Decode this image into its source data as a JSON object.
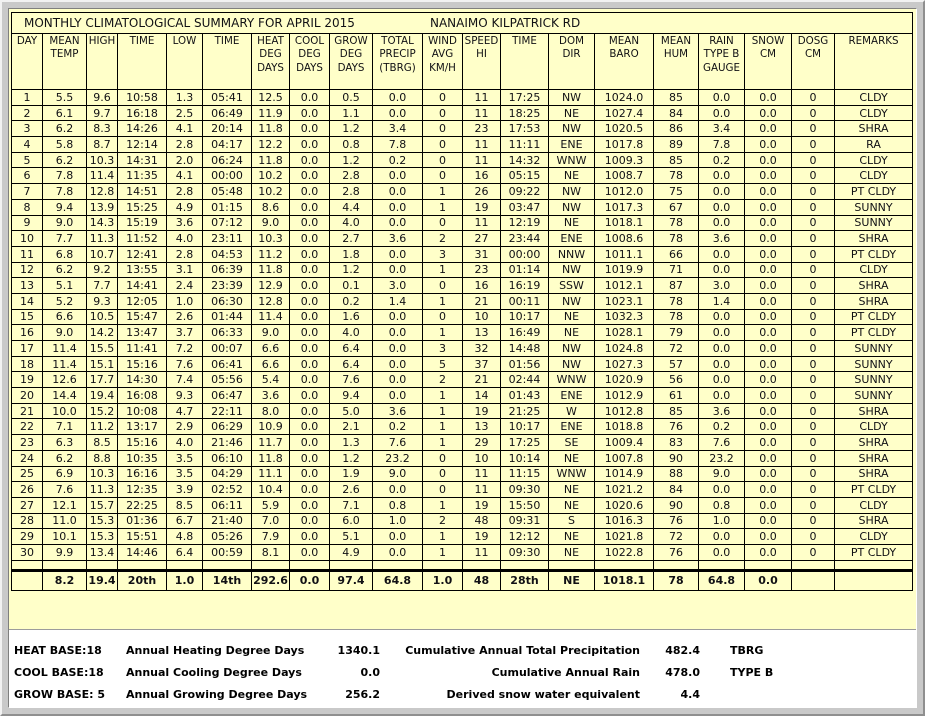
{
  "window": {
    "title": "MONTHLY CLIMATOLOGICAL SUMMARY FOR APRIL 2015",
    "station": "NANAIMO KILPATRICK RD"
  },
  "colors": {
    "panel_bg": "#FFFFC9",
    "footer_bg": "#FFFFFF",
    "grid": "#000000",
    "frame": "#C9C9C9"
  },
  "table": {
    "columns": [
      "DAY",
      "MEAN\nTEMP",
      "HIGH",
      "TIME",
      "LOW",
      "TIME",
      "HEAT\nDEG\nDAYS",
      "COOL\nDEG\nDAYS",
      "GROW\nDEG\nDAYS",
      "TOTAL\nPRECIP\n(TBRG)",
      "WIND\nAVG\nKM/H",
      "SPEED\nHI",
      "TIME",
      "DOM\nDIR",
      "MEAN\nBARO",
      "MEAN\nHUM",
      "RAIN\nTYPE B\nGAUGE",
      "SNOW\nCM",
      "DOSG\nCM",
      "REMARKS"
    ],
    "rows": [
      [
        "1",
        "5.5",
        "9.6",
        "10:58",
        "1.3",
        "05:41",
        "12.5",
        "0.0",
        "0.5",
        "0.0",
        "0",
        "11",
        "17:25",
        "NW",
        "1024.0",
        "85",
        "0.0",
        "0.0",
        "0",
        "CLDY"
      ],
      [
        "2",
        "6.1",
        "9.7",
        "16:18",
        "2.5",
        "06:49",
        "11.9",
        "0.0",
        "1.1",
        "0.0",
        "0",
        "11",
        "18:25",
        "NE",
        "1027.4",
        "84",
        "0.0",
        "0.0",
        "0",
        "CLDY"
      ],
      [
        "3",
        "6.2",
        "8.3",
        "14:26",
        "4.1",
        "20:14",
        "11.8",
        "0.0",
        "1.2",
        "3.4",
        "0",
        "23",
        "17:53",
        "NW",
        "1020.5",
        "86",
        "3.4",
        "0.0",
        "0",
        "SHRA"
      ],
      [
        "4",
        "5.8",
        "8.7",
        "12:14",
        "2.8",
        "04:17",
        "12.2",
        "0.0",
        "0.8",
        "7.8",
        "0",
        "11",
        "11:11",
        "ENE",
        "1017.8",
        "89",
        "7.8",
        "0.0",
        "0",
        "RA"
      ],
      [
        "5",
        "6.2",
        "10.3",
        "14:31",
        "2.0",
        "06:24",
        "11.8",
        "0.0",
        "1.2",
        "0.2",
        "0",
        "11",
        "14:32",
        "WNW",
        "1009.3",
        "85",
        "0.2",
        "0.0",
        "0",
        "CLDY"
      ],
      [
        "6",
        "7.8",
        "11.4",
        "11:35",
        "4.1",
        "00:00",
        "10.2",
        "0.0",
        "2.8",
        "0.0",
        "0",
        "16",
        "05:15",
        "NE",
        "1008.7",
        "78",
        "0.0",
        "0.0",
        "0",
        "CLDY"
      ],
      [
        "7",
        "7.8",
        "12.8",
        "14:51",
        "2.8",
        "05:48",
        "10.2",
        "0.0",
        "2.8",
        "0.0",
        "1",
        "26",
        "09:22",
        "NW",
        "1012.0",
        "75",
        "0.0",
        "0.0",
        "0",
        "PT CLDY"
      ],
      [
        "8",
        "9.4",
        "13.9",
        "15:25",
        "4.9",
        "01:15",
        "8.6",
        "0.0",
        "4.4",
        "0.0",
        "1",
        "19",
        "03:47",
        "NW",
        "1017.3",
        "67",
        "0.0",
        "0.0",
        "0",
        "SUNNY"
      ],
      [
        "9",
        "9.0",
        "14.3",
        "15:19",
        "3.6",
        "07:12",
        "9.0",
        "0.0",
        "4.0",
        "0.0",
        "0",
        "11",
        "12:19",
        "NE",
        "1018.1",
        "78",
        "0.0",
        "0.0",
        "0",
        "SUNNY"
      ],
      [
        "10",
        "7.7",
        "11.3",
        "11:52",
        "4.0",
        "23:11",
        "10.3",
        "0.0",
        "2.7",
        "3.6",
        "2",
        "27",
        "23:44",
        "ENE",
        "1008.6",
        "78",
        "3.6",
        "0.0",
        "0",
        "SHRA"
      ],
      [
        "11",
        "6.8",
        "10.7",
        "12:41",
        "2.8",
        "04:53",
        "11.2",
        "0.0",
        "1.8",
        "0.0",
        "3",
        "31",
        "00:00",
        "NNW",
        "1011.1",
        "66",
        "0.0",
        "0.0",
        "0",
        "PT CLDY"
      ],
      [
        "12",
        "6.2",
        "9.2",
        "13:55",
        "3.1",
        "06:39",
        "11.8",
        "0.0",
        "1.2",
        "0.0",
        "1",
        "23",
        "01:14",
        "NW",
        "1019.9",
        "71",
        "0.0",
        "0.0",
        "0",
        "CLDY"
      ],
      [
        "13",
        "5.1",
        "7.7",
        "14:41",
        "2.4",
        "23:39",
        "12.9",
        "0.0",
        "0.1",
        "3.0",
        "0",
        "16",
        "16:19",
        "SSW",
        "1012.1",
        "87",
        "3.0",
        "0.0",
        "0",
        "SHRA"
      ],
      [
        "14",
        "5.2",
        "9.3",
        "12:05",
        "1.0",
        "06:30",
        "12.8",
        "0.0",
        "0.2",
        "1.4",
        "1",
        "21",
        "00:11",
        "NW",
        "1023.1",
        "78",
        "1.4",
        "0.0",
        "0",
        "SHRA"
      ],
      [
        "15",
        "6.6",
        "10.5",
        "15:47",
        "2.6",
        "01:44",
        "11.4",
        "0.0",
        "1.6",
        "0.0",
        "0",
        "10",
        "10:17",
        "NE",
        "1032.3",
        "78",
        "0.0",
        "0.0",
        "0",
        "PT CLDY"
      ],
      [
        "16",
        "9.0",
        "14.2",
        "13:47",
        "3.7",
        "06:33",
        "9.0",
        "0.0",
        "4.0",
        "0.0",
        "1",
        "13",
        "16:49",
        "NE",
        "1028.1",
        "79",
        "0.0",
        "0.0",
        "0",
        "PT CLDY"
      ],
      [
        "17",
        "11.4",
        "15.5",
        "11:41",
        "7.2",
        "00:07",
        "6.6",
        "0.0",
        "6.4",
        "0.0",
        "3",
        "32",
        "14:48",
        "NW",
        "1024.8",
        "72",
        "0.0",
        "0.0",
        "0",
        "SUNNY"
      ],
      [
        "18",
        "11.4",
        "15.1",
        "15:16",
        "7.6",
        "06:41",
        "6.6",
        "0.0",
        "6.4",
        "0.0",
        "5",
        "37",
        "01:56",
        "NW",
        "1027.3",
        "57",
        "0.0",
        "0.0",
        "0",
        "SUNNY"
      ],
      [
        "19",
        "12.6",
        "17.7",
        "14:30",
        "7.4",
        "05:56",
        "5.4",
        "0.0",
        "7.6",
        "0.0",
        "2",
        "21",
        "02:44",
        "WNW",
        "1020.9",
        "56",
        "0.0",
        "0.0",
        "0",
        "SUNNY"
      ],
      [
        "20",
        "14.4",
        "19.4",
        "16:08",
        "9.3",
        "06:47",
        "3.6",
        "0.0",
        "9.4",
        "0.0",
        "1",
        "14",
        "01:43",
        "ENE",
        "1012.9",
        "61",
        "0.0",
        "0.0",
        "0",
        "SUNNY"
      ],
      [
        "21",
        "10.0",
        "15.2",
        "10:08",
        "4.7",
        "22:11",
        "8.0",
        "0.0",
        "5.0",
        "3.6",
        "1",
        "19",
        "21:25",
        "W",
        "1012.8",
        "85",
        "3.6",
        "0.0",
        "0",
        "SHRA"
      ],
      [
        "22",
        "7.1",
        "11.2",
        "13:17",
        "2.9",
        "06:29",
        "10.9",
        "0.0",
        "2.1",
        "0.2",
        "1",
        "13",
        "10:17",
        "ENE",
        "1018.8",
        "76",
        "0.2",
        "0.0",
        "0",
        "CLDY"
      ],
      [
        "23",
        "6.3",
        "8.5",
        "15:16",
        "4.0",
        "21:46",
        "11.7",
        "0.0",
        "1.3",
        "7.6",
        "1",
        "29",
        "17:25",
        "SE",
        "1009.4",
        "83",
        "7.6",
        "0.0",
        "0",
        "SHRA"
      ],
      [
        "24",
        "6.2",
        "8.8",
        "10:35",
        "3.5",
        "06:10",
        "11.8",
        "0.0",
        "1.2",
        "23.2",
        "0",
        "10",
        "10:14",
        "NE",
        "1007.8",
        "90",
        "23.2",
        "0.0",
        "0",
        "SHRA"
      ],
      [
        "25",
        "6.9",
        "10.3",
        "16:16",
        "3.5",
        "04:29",
        "11.1",
        "0.0",
        "1.9",
        "9.0",
        "0",
        "11",
        "11:15",
        "WNW",
        "1014.9",
        "88",
        "9.0",
        "0.0",
        "0",
        "SHRA"
      ],
      [
        "26",
        "7.6",
        "11.3",
        "12:35",
        "3.9",
        "02:52",
        "10.4",
        "0.0",
        "2.6",
        "0.0",
        "0",
        "11",
        "09:30",
        "NE",
        "1021.2",
        "84",
        "0.0",
        "0.0",
        "0",
        "PT CLDY"
      ],
      [
        "27",
        "12.1",
        "15.7",
        "22:25",
        "8.5",
        "06:11",
        "5.9",
        "0.0",
        "7.1",
        "0.8",
        "1",
        "19",
        "15:50",
        "NE",
        "1020.6",
        "90",
        "0.8",
        "0.0",
        "0",
        "CLDY"
      ],
      [
        "28",
        "11.0",
        "15.3",
        "01:36",
        "6.7",
        "21:40",
        "7.0",
        "0.0",
        "6.0",
        "1.0",
        "2",
        "48",
        "09:31",
        "S",
        "1016.3",
        "76",
        "1.0",
        "0.0",
        "0",
        "SHRA"
      ],
      [
        "29",
        "10.1",
        "15.3",
        "15:51",
        "4.8",
        "05:26",
        "7.9",
        "0.0",
        "5.1",
        "0.0",
        "1",
        "19",
        "12:12",
        "NE",
        "1021.8",
        "72",
        "0.0",
        "0.0",
        "0",
        "CLDY"
      ],
      [
        "30",
        "9.9",
        "13.4",
        "14:46",
        "6.4",
        "00:59",
        "8.1",
        "0.0",
        "4.9",
        "0.0",
        "1",
        "11",
        "09:30",
        "NE",
        "1022.8",
        "76",
        "0.0",
        "0.0",
        "0",
        "PT CLDY"
      ]
    ],
    "summary": [
      "",
      "8.2",
      "19.4",
      "20th",
      "1.0",
      "14th",
      "292.6",
      "0.0",
      "97.4",
      "64.8",
      "1.0",
      "48",
      "28th",
      "NE",
      "1018.1",
      "78",
      "64.8",
      "0.0",
      "",
      ""
    ]
  },
  "footer": {
    "rows": [
      {
        "label": "HEAT BASE:18",
        "desc": "Annual Heating Degree Days",
        "value": "1340.1",
        "right_label": "Cumulative Annual Total Precipitation",
        "right_value": "482.4",
        "tag": "TBRG"
      },
      {
        "label": "COOL BASE:18",
        "desc": "Annual Cooling Degree Days",
        "value": "0.0",
        "right_label": "Cumulative Annual Rain",
        "right_value": "478.0",
        "tag": "TYPE B"
      },
      {
        "label": "GROW BASE: 5",
        "desc": "Annual Growing Degree Days",
        "value": "256.2",
        "right_label": "Derived snow water equivalent",
        "right_value": "4.4",
        "tag": ""
      }
    ]
  }
}
